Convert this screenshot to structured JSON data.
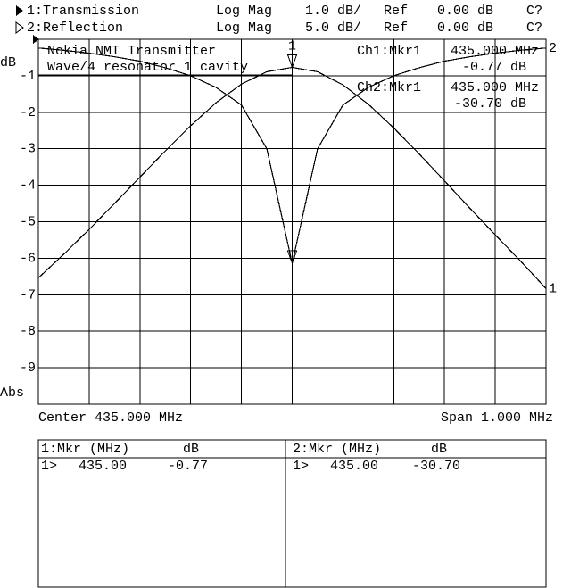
{
  "header": {
    "rows": [
      {
        "format": "Log Mag",
        "scale": "1.0 dB/",
        "ref": "Ref",
        "ref_value": "0.00 dB",
        "flag": "C?"
      },
      {
        "format": "Log Mag",
        "scale": "5.0 dB/",
        "ref": "Ref",
        "ref_value": "0.00 dB",
        "flag": "C?"
      }
    ]
  },
  "notes": [
    "Nokia NMT Transmitter",
    "Wave/4 resonator 1 cavity"
  ],
  "readouts": [
    {
      "label": "Ch1:Mkr1",
      "freq": "435.000 MHz",
      "value": "-0.77 dB"
    },
    {
      "label": "Ch2:Mkr1",
      "freq": "435.000 MHz",
      "value": "-30.70 dB"
    }
  ],
  "footer": {
    "center": "Center 435.000 MHz",
    "span": "Span 1.000 MHz"
  },
  "table": {
    "panels": [
      {
        "header": [
          "1:Mkr (MHz)",
          "dB"
        ],
        "row": [
          "1>",
          "435.00",
          "-0.77"
        ]
      },
      {
        "header": [
          "2:Mkr (MHz)",
          "dB"
        ],
        "row": [
          "1>",
          "435.00",
          "-30.70"
        ]
      }
    ]
  },
  "chart_data": {
    "type": "line",
    "y_unit": "dB",
    "y_mode": "Abs",
    "x": [
      434.5,
      434.55,
      434.6,
      434.65,
      434.7,
      434.75,
      434.8,
      434.85,
      434.9,
      434.95,
      435,
      435.05,
      435.1,
      435.15,
      435.2,
      435.25,
      435.3,
      435.35,
      435.4,
      435.45,
      435.5
    ],
    "xlim": [
      434.5,
      435.5
    ],
    "ylim": [
      -10,
      0
    ],
    "yticks": [
      -1,
      -2,
      -3,
      -4,
      -5,
      -6,
      -7,
      -8,
      -9
    ],
    "y2lim": [
      -50,
      0
    ],
    "grid": true,
    "series": [
      {
        "name": "1:Transmission",
        "trace_label": "1",
        "color": "#000",
        "values": [
          -6.54,
          -5.89,
          -5.21,
          -4.5,
          -3.78,
          -3.06,
          -2.37,
          -1.74,
          -1.23,
          -0.89,
          -0.77,
          -0.89,
          -1.25,
          -1.78,
          -2.43,
          -3.14,
          -3.88,
          -4.63,
          -5.36,
          -6.08,
          -6.83
        ]
      },
      {
        "name": "2:Reflection",
        "trace_label": "2",
        "color": "#000",
        "axis": "y2",
        "values": [
          -1.2,
          -1.5,
          -1.9,
          -2.4,
          -3.0,
          -3.9,
          -5.0,
          -6.6,
          -9.0,
          -15,
          -30.7,
          -15,
          -9.0,
          -6.6,
          -5.0,
          -3.9,
          -3.0,
          -2.4,
          -1.9,
          -1.5,
          -1.2
        ]
      }
    ],
    "marker": {
      "x": 435,
      "label": "1"
    }
  }
}
